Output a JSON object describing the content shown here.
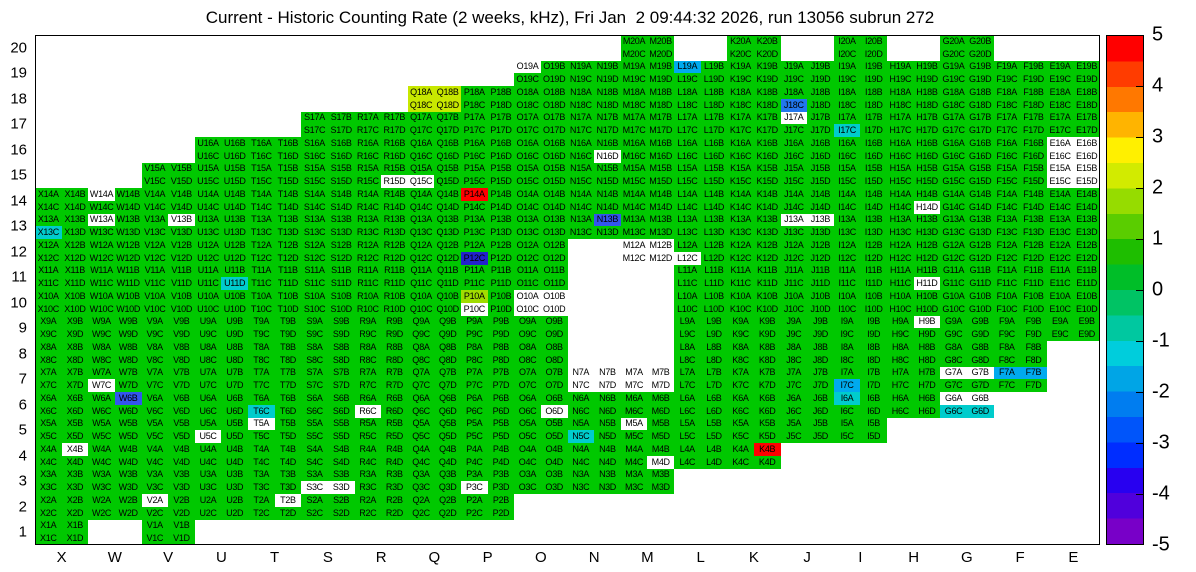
{
  "title": "Current - Historic Counting Rate (2 weeks, kHz), Fri Jan  2 09:44:32 2026, run 13056 subrun 272",
  "chart_data": {
    "type": "heatmap",
    "title": "Current - Historic Counting Rate (2 weeks, kHz), Fri Jan  2 09:44:32 2026, run 13056 subrun 272",
    "x_categories": [
      "X",
      "W",
      "V",
      "U",
      "T",
      "S",
      "R",
      "Q",
      "P",
      "O",
      "N",
      "M",
      "L",
      "K",
      "J",
      "I",
      "H",
      "G",
      "F",
      "E"
    ],
    "y_categories": [
      20,
      19,
      18,
      17,
      16,
      15,
      14,
      13,
      12,
      11,
      10,
      9,
      8,
      7,
      6,
      5,
      4,
      3,
      2,
      1
    ],
    "sub_labels": [
      "A",
      "B",
      "C",
      "D"
    ],
    "value_scale": {
      "min": -5,
      "max": 5
    },
    "colorbar_ticks": [
      "5",
      "4",
      "3",
      "2",
      "1",
      "0",
      "-1",
      "-2",
      "-3",
      "-4",
      "-5"
    ],
    "colorbar_colors": [
      "#FF0000",
      "#FF3C00",
      "#FF7800",
      "#FFB400",
      "#FFF000",
      "#D2EB00",
      "#96DC00",
      "#5ACD00",
      "#1EBE00",
      "#00BE28",
      "#00C364",
      "#00C8A0",
      "#00CDDC",
      "#00A5E6",
      "#007DF0",
      "#0055FA",
      "#002DFF",
      "#2800F0",
      "#5000DC",
      "#7800C8"
    ],
    "default_color": "#00C800",
    "value_estimates": {
      "green_default": 0.5,
      "red": 5,
      "yellow_green": 2,
      "cyan": -1,
      "light_blue": -2,
      "blue": -3,
      "white": "no data"
    },
    "rows_present": {
      "20": [
        "M",
        "K",
        "I",
        "G"
      ],
      "19": [
        "O",
        "N",
        "M",
        "L",
        "K",
        "J",
        "I",
        "H",
        "G",
        "F",
        "E"
      ],
      "18": [
        "Q",
        "P",
        "O",
        "N",
        "M",
        "L",
        "K",
        "J",
        "I",
        "H",
        "G",
        "F",
        "E"
      ],
      "17": [
        "S",
        "R",
        "Q",
        "P",
        "O",
        "N",
        "M",
        "L",
        "K",
        "J",
        "I",
        "H",
        "G",
        "F",
        "E"
      ],
      "16": [
        "U",
        "T",
        "S",
        "R",
        "Q",
        "P",
        "O",
        "N",
        "M",
        "L",
        "K",
        "J",
        "I",
        "H",
        "G",
        "F",
        "E"
      ],
      "15": [
        "V",
        "U",
        "T",
        "S",
        "R",
        "Q",
        "P",
        "O",
        "N",
        "M",
        "L",
        "K",
        "J",
        "I",
        "H",
        "G",
        "F",
        "E"
      ],
      "14": [
        "X",
        "W",
        "V",
        "U",
        "T",
        "S",
        "R",
        "Q",
        "P",
        "O",
        "N",
        "M",
        "L",
        "K",
        "J",
        "I",
        "H",
        "G",
        "F",
        "E"
      ],
      "13": [
        "X",
        "W",
        "V",
        "U",
        "T",
        "S",
        "R",
        "Q",
        "P",
        "O",
        "N",
        "M",
        "L",
        "K",
        "J",
        "I",
        "H",
        "G",
        "F",
        "E"
      ],
      "12": [
        "X",
        "W",
        "V",
        "U",
        "T",
        "S",
        "R",
        "Q",
        "P",
        "O",
        "M",
        "L",
        "K",
        "J",
        "I",
        "H",
        "G",
        "F",
        "E"
      ],
      "11": [
        "X",
        "W",
        "V",
        "U",
        "T",
        "S",
        "R",
        "Q",
        "P",
        "O",
        "L",
        "K",
        "J",
        "I",
        "H",
        "G",
        "F",
        "E"
      ],
      "10": [
        "X",
        "W",
        "V",
        "U",
        "T",
        "S",
        "R",
        "Q",
        "P",
        "O",
        "L",
        "K",
        "J",
        "I",
        "H",
        "G",
        "F",
        "E"
      ],
      "9": [
        "X",
        "W",
        "V",
        "U",
        "T",
        "S",
        "R",
        "Q",
        "P",
        "O",
        "L",
        "K",
        "J",
        "I",
        "H",
        "G",
        "F",
        "E"
      ],
      "8": [
        "X",
        "W",
        "V",
        "U",
        "T",
        "S",
        "R",
        "Q",
        "P",
        "O",
        "L",
        "K",
        "J",
        "I",
        "H",
        "G",
        "F"
      ],
      "7": [
        "X",
        "W",
        "V",
        "U",
        "T",
        "S",
        "R",
        "Q",
        "P",
        "O",
        "N",
        "M",
        "L",
        "K",
        "J",
        "I",
        "H",
        "G",
        "F"
      ],
      "6": [
        "X",
        "W",
        "V",
        "U",
        "T",
        "S",
        "R",
        "Q",
        "P",
        "O",
        "N",
        "M",
        "L",
        "K",
        "J",
        "I",
        "H",
        "G"
      ],
      "5": [
        "X",
        "W",
        "V",
        "U",
        "T",
        "S",
        "R",
        "Q",
        "P",
        "O",
        "N",
        "M",
        "L",
        "K",
        "J",
        "I"
      ],
      "4": [
        "X",
        "W",
        "V",
        "U",
        "T",
        "S",
        "R",
        "Q",
        "P",
        "O",
        "N",
        "M",
        "L",
        "K"
      ],
      "3": [
        "X",
        "W",
        "V",
        "U",
        "T",
        "S",
        "R",
        "Q",
        "P",
        "O",
        "N",
        "M"
      ],
      "2": [
        "X",
        "W",
        "V",
        "U",
        "T",
        "S",
        "R",
        "Q",
        "P"
      ],
      "1": [
        "X",
        "V"
      ]
    },
    "special_cells": {
      "P14A": "#FF0000",
      "K4B": "#FF0000",
      "Q18A": "#C8E800",
      "Q18B": "#C8E800",
      "Q18C": "#C8E800",
      "Q18D": "#C8E800",
      "P10A": "#A0DC00",
      "L19A": "#00AAEE",
      "I7C": "#00AAEE",
      "F7A": "#00AAEE",
      "F7B": "#00AAEE",
      "J18C": "#2277EE",
      "N13B": "#3355EE",
      "W6B": "#3355EE",
      "P12C": "#2222CC",
      "X13C": "#00CCCC",
      "I17C": "#00CCCC",
      "U11D": "#00CCCC",
      "N5C": "#00CCCC",
      "I6A": "#00CCCC",
      "T6C": "#00CCCC",
      "G6C": "#00CCCC",
      "G6D": "#00CCCC"
    },
    "white_label_cells": [
      "O19A",
      "J17A",
      "N16D",
      "E16A",
      "E16B",
      "E16C",
      "E16D",
      "Q15C",
      "R15D",
      "E15A",
      "E15B",
      "E15C",
      "E15D",
      "W14A",
      "H14D",
      "W13A",
      "V13B",
      "J13A",
      "J13B",
      "M12A",
      "M12B",
      "M12C",
      "M12D",
      "L12C",
      "H11D",
      "O10A",
      "O10B",
      "O10C",
      "O10D",
      "P10C",
      "H9B",
      "N7A",
      "N7B",
      "N7C",
      "N7D",
      "M7A",
      "M7B",
      "M7C",
      "M7D",
      "W7C",
      "G7A",
      "G7B",
      "G6A",
      "G6B",
      "R6C",
      "O6D",
      "U5C",
      "T5A",
      "M5A",
      "X4B",
      "M4D",
      "S3C",
      "S3D",
      "P3C",
      "V2A",
      "T2B"
    ]
  }
}
